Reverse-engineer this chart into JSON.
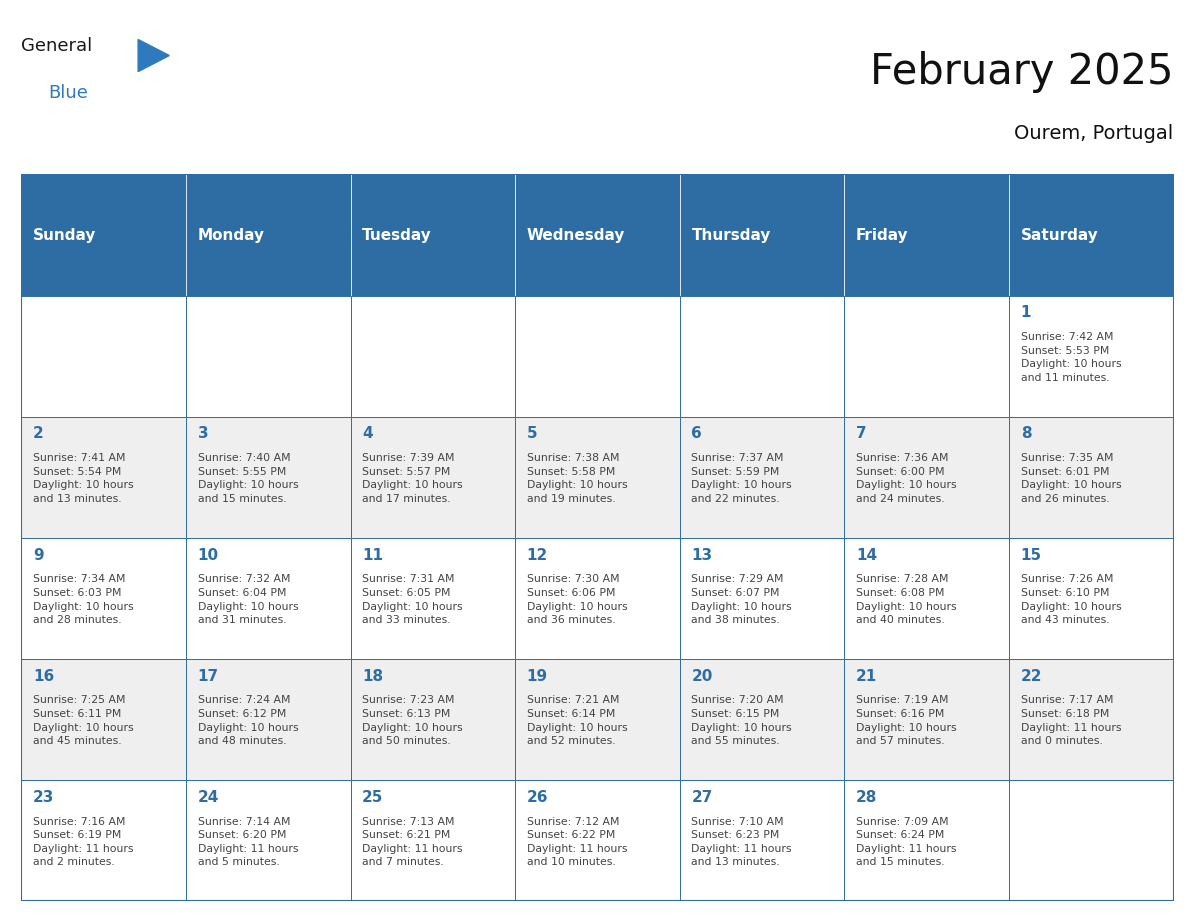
{
  "title": "February 2025",
  "subtitle": "Ourem, Portugal",
  "header_color": "#2E6DA4",
  "header_text_color": "#FFFFFF",
  "cell_bg_white": "#FFFFFF",
  "cell_bg_gray": "#EFEFEF",
  "border_color": "#2E6DA4",
  "days_of_week": [
    "Sunday",
    "Monday",
    "Tuesday",
    "Wednesday",
    "Thursday",
    "Friday",
    "Saturday"
  ],
  "calendar_data": [
    [
      {
        "day": "",
        "info": ""
      },
      {
        "day": "",
        "info": ""
      },
      {
        "day": "",
        "info": ""
      },
      {
        "day": "",
        "info": ""
      },
      {
        "day": "",
        "info": ""
      },
      {
        "day": "",
        "info": ""
      },
      {
        "day": "1",
        "info": "Sunrise: 7:42 AM\nSunset: 5:53 PM\nDaylight: 10 hours\nand 11 minutes."
      }
    ],
    [
      {
        "day": "2",
        "info": "Sunrise: 7:41 AM\nSunset: 5:54 PM\nDaylight: 10 hours\nand 13 minutes."
      },
      {
        "day": "3",
        "info": "Sunrise: 7:40 AM\nSunset: 5:55 PM\nDaylight: 10 hours\nand 15 minutes."
      },
      {
        "day": "4",
        "info": "Sunrise: 7:39 AM\nSunset: 5:57 PM\nDaylight: 10 hours\nand 17 minutes."
      },
      {
        "day": "5",
        "info": "Sunrise: 7:38 AM\nSunset: 5:58 PM\nDaylight: 10 hours\nand 19 minutes."
      },
      {
        "day": "6",
        "info": "Sunrise: 7:37 AM\nSunset: 5:59 PM\nDaylight: 10 hours\nand 22 minutes."
      },
      {
        "day": "7",
        "info": "Sunrise: 7:36 AM\nSunset: 6:00 PM\nDaylight: 10 hours\nand 24 minutes."
      },
      {
        "day": "8",
        "info": "Sunrise: 7:35 AM\nSunset: 6:01 PM\nDaylight: 10 hours\nand 26 minutes."
      }
    ],
    [
      {
        "day": "9",
        "info": "Sunrise: 7:34 AM\nSunset: 6:03 PM\nDaylight: 10 hours\nand 28 minutes."
      },
      {
        "day": "10",
        "info": "Sunrise: 7:32 AM\nSunset: 6:04 PM\nDaylight: 10 hours\nand 31 minutes."
      },
      {
        "day": "11",
        "info": "Sunrise: 7:31 AM\nSunset: 6:05 PM\nDaylight: 10 hours\nand 33 minutes."
      },
      {
        "day": "12",
        "info": "Sunrise: 7:30 AM\nSunset: 6:06 PM\nDaylight: 10 hours\nand 36 minutes."
      },
      {
        "day": "13",
        "info": "Sunrise: 7:29 AM\nSunset: 6:07 PM\nDaylight: 10 hours\nand 38 minutes."
      },
      {
        "day": "14",
        "info": "Sunrise: 7:28 AM\nSunset: 6:08 PM\nDaylight: 10 hours\nand 40 minutes."
      },
      {
        "day": "15",
        "info": "Sunrise: 7:26 AM\nSunset: 6:10 PM\nDaylight: 10 hours\nand 43 minutes."
      }
    ],
    [
      {
        "day": "16",
        "info": "Sunrise: 7:25 AM\nSunset: 6:11 PM\nDaylight: 10 hours\nand 45 minutes."
      },
      {
        "day": "17",
        "info": "Sunrise: 7:24 AM\nSunset: 6:12 PM\nDaylight: 10 hours\nand 48 minutes."
      },
      {
        "day": "18",
        "info": "Sunrise: 7:23 AM\nSunset: 6:13 PM\nDaylight: 10 hours\nand 50 minutes."
      },
      {
        "day": "19",
        "info": "Sunrise: 7:21 AM\nSunset: 6:14 PM\nDaylight: 10 hours\nand 52 minutes."
      },
      {
        "day": "20",
        "info": "Sunrise: 7:20 AM\nSunset: 6:15 PM\nDaylight: 10 hours\nand 55 minutes."
      },
      {
        "day": "21",
        "info": "Sunrise: 7:19 AM\nSunset: 6:16 PM\nDaylight: 10 hours\nand 57 minutes."
      },
      {
        "day": "22",
        "info": "Sunrise: 7:17 AM\nSunset: 6:18 PM\nDaylight: 11 hours\nand 0 minutes."
      }
    ],
    [
      {
        "day": "23",
        "info": "Sunrise: 7:16 AM\nSunset: 6:19 PM\nDaylight: 11 hours\nand 2 minutes."
      },
      {
        "day": "24",
        "info": "Sunrise: 7:14 AM\nSunset: 6:20 PM\nDaylight: 11 hours\nand 5 minutes."
      },
      {
        "day": "25",
        "info": "Sunrise: 7:13 AM\nSunset: 6:21 PM\nDaylight: 11 hours\nand 7 minutes."
      },
      {
        "day": "26",
        "info": "Sunrise: 7:12 AM\nSunset: 6:22 PM\nDaylight: 11 hours\nand 10 minutes."
      },
      {
        "day": "27",
        "info": "Sunrise: 7:10 AM\nSunset: 6:23 PM\nDaylight: 11 hours\nand 13 minutes."
      },
      {
        "day": "28",
        "info": "Sunrise: 7:09 AM\nSunset: 6:24 PM\nDaylight: 11 hours\nand 15 minutes."
      },
      {
        "day": "",
        "info": ""
      }
    ]
  ],
  "logo_general_color": "#1a1a1a",
  "logo_blue_color": "#2E7ABF",
  "text_color": "#444444",
  "day_num_color": "#2E6DA4",
  "title_fontsize": 30,
  "subtitle_fontsize": 14,
  "header_fontsize": 11,
  "day_num_fontsize": 11,
  "info_fontsize": 7.8
}
